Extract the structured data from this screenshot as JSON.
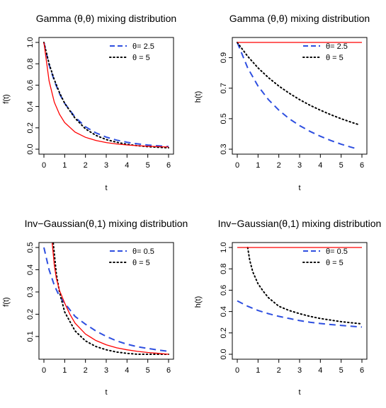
{
  "colors": {
    "red": "#ff0000",
    "blue": "#2e4fe0",
    "black": "#000000"
  },
  "chart_data": [
    {
      "type": "line",
      "title": "Gamma (θ,θ) mixing distribution",
      "xlabel": "t",
      "ylabel": "f(t)",
      "xlim": [
        0,
        6
      ],
      "ylim": [
        0,
        1.0
      ],
      "xticks": [
        "0",
        "1",
        "2",
        "3",
        "4",
        "5",
        "6"
      ],
      "yticks": [
        "0.0",
        "0.2",
        "0.4",
        "0.6",
        "0.8",
        "1.0"
      ],
      "legend_position": "top-right",
      "series": [
        {
          "name": "θ= 2.5",
          "style": "dashed",
          "color": "#2e4fe0",
          "x": [
            0,
            0.25,
            0.5,
            0.75,
            1,
            1.5,
            2,
            2.5,
            3,
            3.5,
            4,
            4.5,
            5,
            5.5,
            6
          ],
          "y": [
            1.0,
            0.79,
            0.64,
            0.52,
            0.43,
            0.3,
            0.21,
            0.153,
            0.113,
            0.085,
            0.065,
            0.05,
            0.039,
            0.031,
            0.025
          ]
        },
        {
          "name": "θ = 5",
          "style": "dotted",
          "color": "#000000",
          "x": [
            0,
            0.25,
            0.5,
            0.75,
            1,
            1.5,
            2,
            2.5,
            3,
            3.5,
            4,
            4.5,
            5,
            5.5,
            6
          ],
          "y": [
            1.0,
            0.8,
            0.65,
            0.53,
            0.43,
            0.29,
            0.19,
            0.13,
            0.09,
            0.065,
            0.046,
            0.033,
            0.024,
            0.018,
            0.013
          ]
        },
        {
          "name": "",
          "style": "solid",
          "color": "#ff0000",
          "x": [
            0,
            0.25,
            0.5,
            0.75,
            1,
            1.5,
            2,
            2.5,
            3,
            3.5,
            4,
            4.5,
            5,
            5.5,
            6
          ],
          "y": [
            1.0,
            0.64,
            0.44,
            0.327,
            0.25,
            0.16,
            0.111,
            0.082,
            0.0625,
            0.049,
            0.04,
            0.033,
            0.0278,
            0.0237,
            0.0204
          ]
        }
      ]
    },
    {
      "type": "line",
      "title": "Gamma (θ,θ) mixing distribution",
      "xlabel": "t",
      "ylabel": "h(t)",
      "xlim": [
        0,
        6
      ],
      "ylim": [
        0.3,
        1.0
      ],
      "xticks": [
        "0",
        "1",
        "2",
        "3",
        "4",
        "5",
        "6"
      ],
      "yticks": [
        "0.3",
        "0.5",
        "0.7",
        "0.9"
      ],
      "legend_position": "top-right",
      "series": [
        {
          "name": "θ= 2.5",
          "style": "dashed",
          "color": "#2e4fe0",
          "x": [
            0,
            0.5,
            1,
            1.5,
            2,
            2.5,
            3,
            3.5,
            4,
            4.5,
            5,
            5.5,
            5.8
          ],
          "y": [
            1.0,
            0.833,
            0.714,
            0.625,
            0.556,
            0.5,
            0.455,
            0.417,
            0.385,
            0.357,
            0.333,
            0.3125,
            0.301
          ]
        },
        {
          "name": "θ = 5",
          "style": "dotted",
          "color": "#000000",
          "x": [
            0,
            0.5,
            1,
            1.5,
            2,
            2.5,
            3,
            3.5,
            4,
            4.5,
            5,
            5.5,
            5.8
          ],
          "y": [
            1.0,
            0.909,
            0.833,
            0.769,
            0.714,
            0.667,
            0.625,
            0.588,
            0.556,
            0.526,
            0.5,
            0.476,
            0.463
          ]
        },
        {
          "name": "",
          "style": "solid",
          "color": "#ff0000",
          "x": [
            0,
            6
          ],
          "y": [
            1.0,
            1.0
          ]
        }
      ]
    },
    {
      "type": "line",
      "title": "Inv−Gaussian(θ,1) mixing distribution",
      "xlabel": "t",
      "ylabel": "f(t)",
      "xlim": [
        0,
        6
      ],
      "ylim": [
        0.02,
        0.5
      ],
      "xticks": [
        "0",
        "1",
        "2",
        "3",
        "4",
        "5",
        "6"
      ],
      "yticks": [
        "0.1",
        "0.2",
        "0.3",
        "0.4",
        "0.5"
      ],
      "legend_position": "top-right",
      "series": [
        {
          "name": "θ= 0.5",
          "style": "dashed",
          "color": "#2e4fe0",
          "x": [
            0,
            0.25,
            0.5,
            0.75,
            1,
            1.5,
            2,
            2.5,
            3,
            3.5,
            4,
            4.5,
            5,
            5.5,
            6
          ],
          "y": [
            0.5,
            0.4,
            0.33,
            0.28,
            0.25,
            0.19,
            0.155,
            0.125,
            0.1,
            0.08,
            0.065,
            0.054,
            0.046,
            0.039,
            0.033
          ]
        },
        {
          "name": "θ = 5",
          "style": "dotted",
          "color": "#000000",
          "x": [
            0.45,
            0.6,
            0.75,
            1,
            1.5,
            2,
            2.5,
            3,
            3.5,
            4,
            4.5,
            5,
            5.5,
            6
          ],
          "y": [
            0.52,
            0.38,
            0.3,
            0.21,
            0.125,
            0.08,
            0.055,
            0.04,
            0.03,
            0.024,
            0.02,
            0.02,
            0.02,
            0.02
          ]
        },
        {
          "name": "",
          "style": "solid",
          "color": "#ff0000",
          "x": [
            0.4,
            0.5,
            0.6,
            0.75,
            1,
            1.25,
            1.5,
            2,
            2.5,
            3,
            3.5,
            4,
            4.5,
            5,
            5.5,
            6
          ],
          "y": [
            0.52,
            0.42,
            0.36,
            0.307,
            0.25,
            0.2,
            0.16,
            0.111,
            0.082,
            0.0625,
            0.049,
            0.04,
            0.033,
            0.028,
            0.024,
            0.02
          ]
        }
      ]
    },
    {
      "type": "line",
      "title": "Inv−Gaussian(θ,1) mixing distribution",
      "xlabel": "t",
      "ylabel": "h(t)",
      "xlim": [
        0,
        6
      ],
      "ylim": [
        0.0,
        1.0
      ],
      "xticks": [
        "0",
        "1",
        "2",
        "3",
        "4",
        "5",
        "6"
      ],
      "yticks": [
        "0.0",
        "0.2",
        "0.4",
        "0.6",
        "0.8",
        "1.0"
      ],
      "legend_position": "top-right",
      "series": [
        {
          "name": "θ= 0.5",
          "style": "dashed",
          "color": "#2e4fe0",
          "x": [
            0,
            0.5,
            1,
            1.5,
            2,
            2.5,
            3,
            3.5,
            4,
            4.5,
            5,
            5.5,
            6
          ],
          "y": [
            0.5,
            0.45,
            0.41,
            0.38,
            0.355,
            0.335,
            0.315,
            0.3,
            0.288,
            0.278,
            0.27,
            0.262,
            0.255
          ]
        },
        {
          "name": "θ = 5",
          "style": "dotted",
          "color": "#000000",
          "x": [
            0.5,
            0.6,
            0.75,
            1,
            1.25,
            1.5,
            2,
            2.5,
            3,
            3.5,
            4,
            4.5,
            5,
            5.5,
            6
          ],
          "y": [
            1.0,
            0.88,
            0.77,
            0.66,
            0.59,
            0.53,
            0.45,
            0.41,
            0.38,
            0.355,
            0.335,
            0.32,
            0.305,
            0.295,
            0.285
          ]
        },
        {
          "name": "",
          "style": "solid",
          "color": "#ff0000",
          "x": [
            0,
            6
          ],
          "y": [
            1.0,
            1.0
          ]
        }
      ]
    }
  ]
}
